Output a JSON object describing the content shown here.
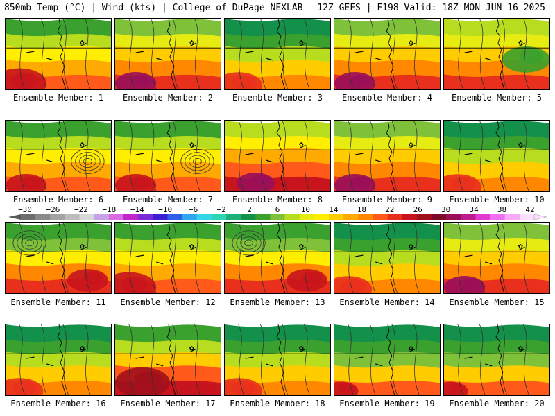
{
  "header": {
    "title": "850mb Temp (°C) | Wind (kts) | College of DuPage NEXLAB",
    "run_info": "12Z GEFS | F198 Valid: 18Z MON JUN 16 2025"
  },
  "caption_prefix": "Ensemble Member: ",
  "members": [
    {
      "label": "Ensemble Member: 1",
      "style": "hot-sw"
    },
    {
      "label": "Ensemble Member: 2",
      "style": "very-hot-sw"
    },
    {
      "label": "Ensemble Member: 3",
      "style": "cool-n"
    },
    {
      "label": "Ensemble Member: 4",
      "style": "very-hot-sw"
    },
    {
      "label": "Ensemble Member: 5",
      "style": "mild"
    },
    {
      "label": "Ensemble Member: 6",
      "style": "low-center"
    },
    {
      "label": "Ensemble Member: 7",
      "style": "low-center"
    },
    {
      "label": "Ensemble Member: 8",
      "style": "very-hot-s"
    },
    {
      "label": "Ensemble Member: 9",
      "style": "very-hot-sw"
    },
    {
      "label": "Ensemble Member: 10",
      "style": "cool-n"
    },
    {
      "label": "Ensemble Member: 11",
      "style": "low-nw"
    },
    {
      "label": "Ensemble Member: 12",
      "style": "hot-sw"
    },
    {
      "label": "Ensemble Member: 13",
      "style": "low-nw"
    },
    {
      "label": "Ensemble Member: 14",
      "style": "cool-n"
    },
    {
      "label": "Ensemble Member: 15",
      "style": "very-hot-sw"
    },
    {
      "label": "Ensemble Member: 16",
      "style": "cool-n"
    },
    {
      "label": "Ensemble Member: 17",
      "style": "hot-s"
    },
    {
      "label": "Ensemble Member: 18",
      "style": "cool-n"
    },
    {
      "label": "Ensemble Member: 19",
      "style": "trough"
    },
    {
      "label": "Ensemble Member: 20",
      "style": "trough"
    }
  ],
  "colorbar": {
    "labels": [
      "−30",
      "−26",
      "−22",
      "−18",
      "−14",
      "−10",
      "−6",
      "−2",
      "2",
      "6",
      "10",
      "14",
      "18",
      "22",
      "26",
      "30",
      "34",
      "38",
      "42"
    ],
    "colors": [
      "#6e6e6e",
      "#8a8a8a",
      "#a3a3a3",
      "#bdbdbd",
      "#d8d8d8",
      "#c8a2e8",
      "#d96be3",
      "#c026c9",
      "#7a2bd6",
      "#3b1fd1",
      "#2f5de8",
      "#2fa6f0",
      "#32d6e8",
      "#2dd6b2",
      "#1fb07a",
      "#13904a",
      "#3aa02e",
      "#7fc23a",
      "#b8dc1e",
      "#e6ec12",
      "#ffee00",
      "#ffcc00",
      "#ffaa00",
      "#ff8800",
      "#ff5a1a",
      "#e8301c",
      "#c8141c",
      "#a0101c",
      "#800a2a",
      "#9a0e5a",
      "#c01a8e",
      "#e03ad0",
      "#f06ef0",
      "#f8a8f8",
      "#fde0fd"
    ]
  }
}
